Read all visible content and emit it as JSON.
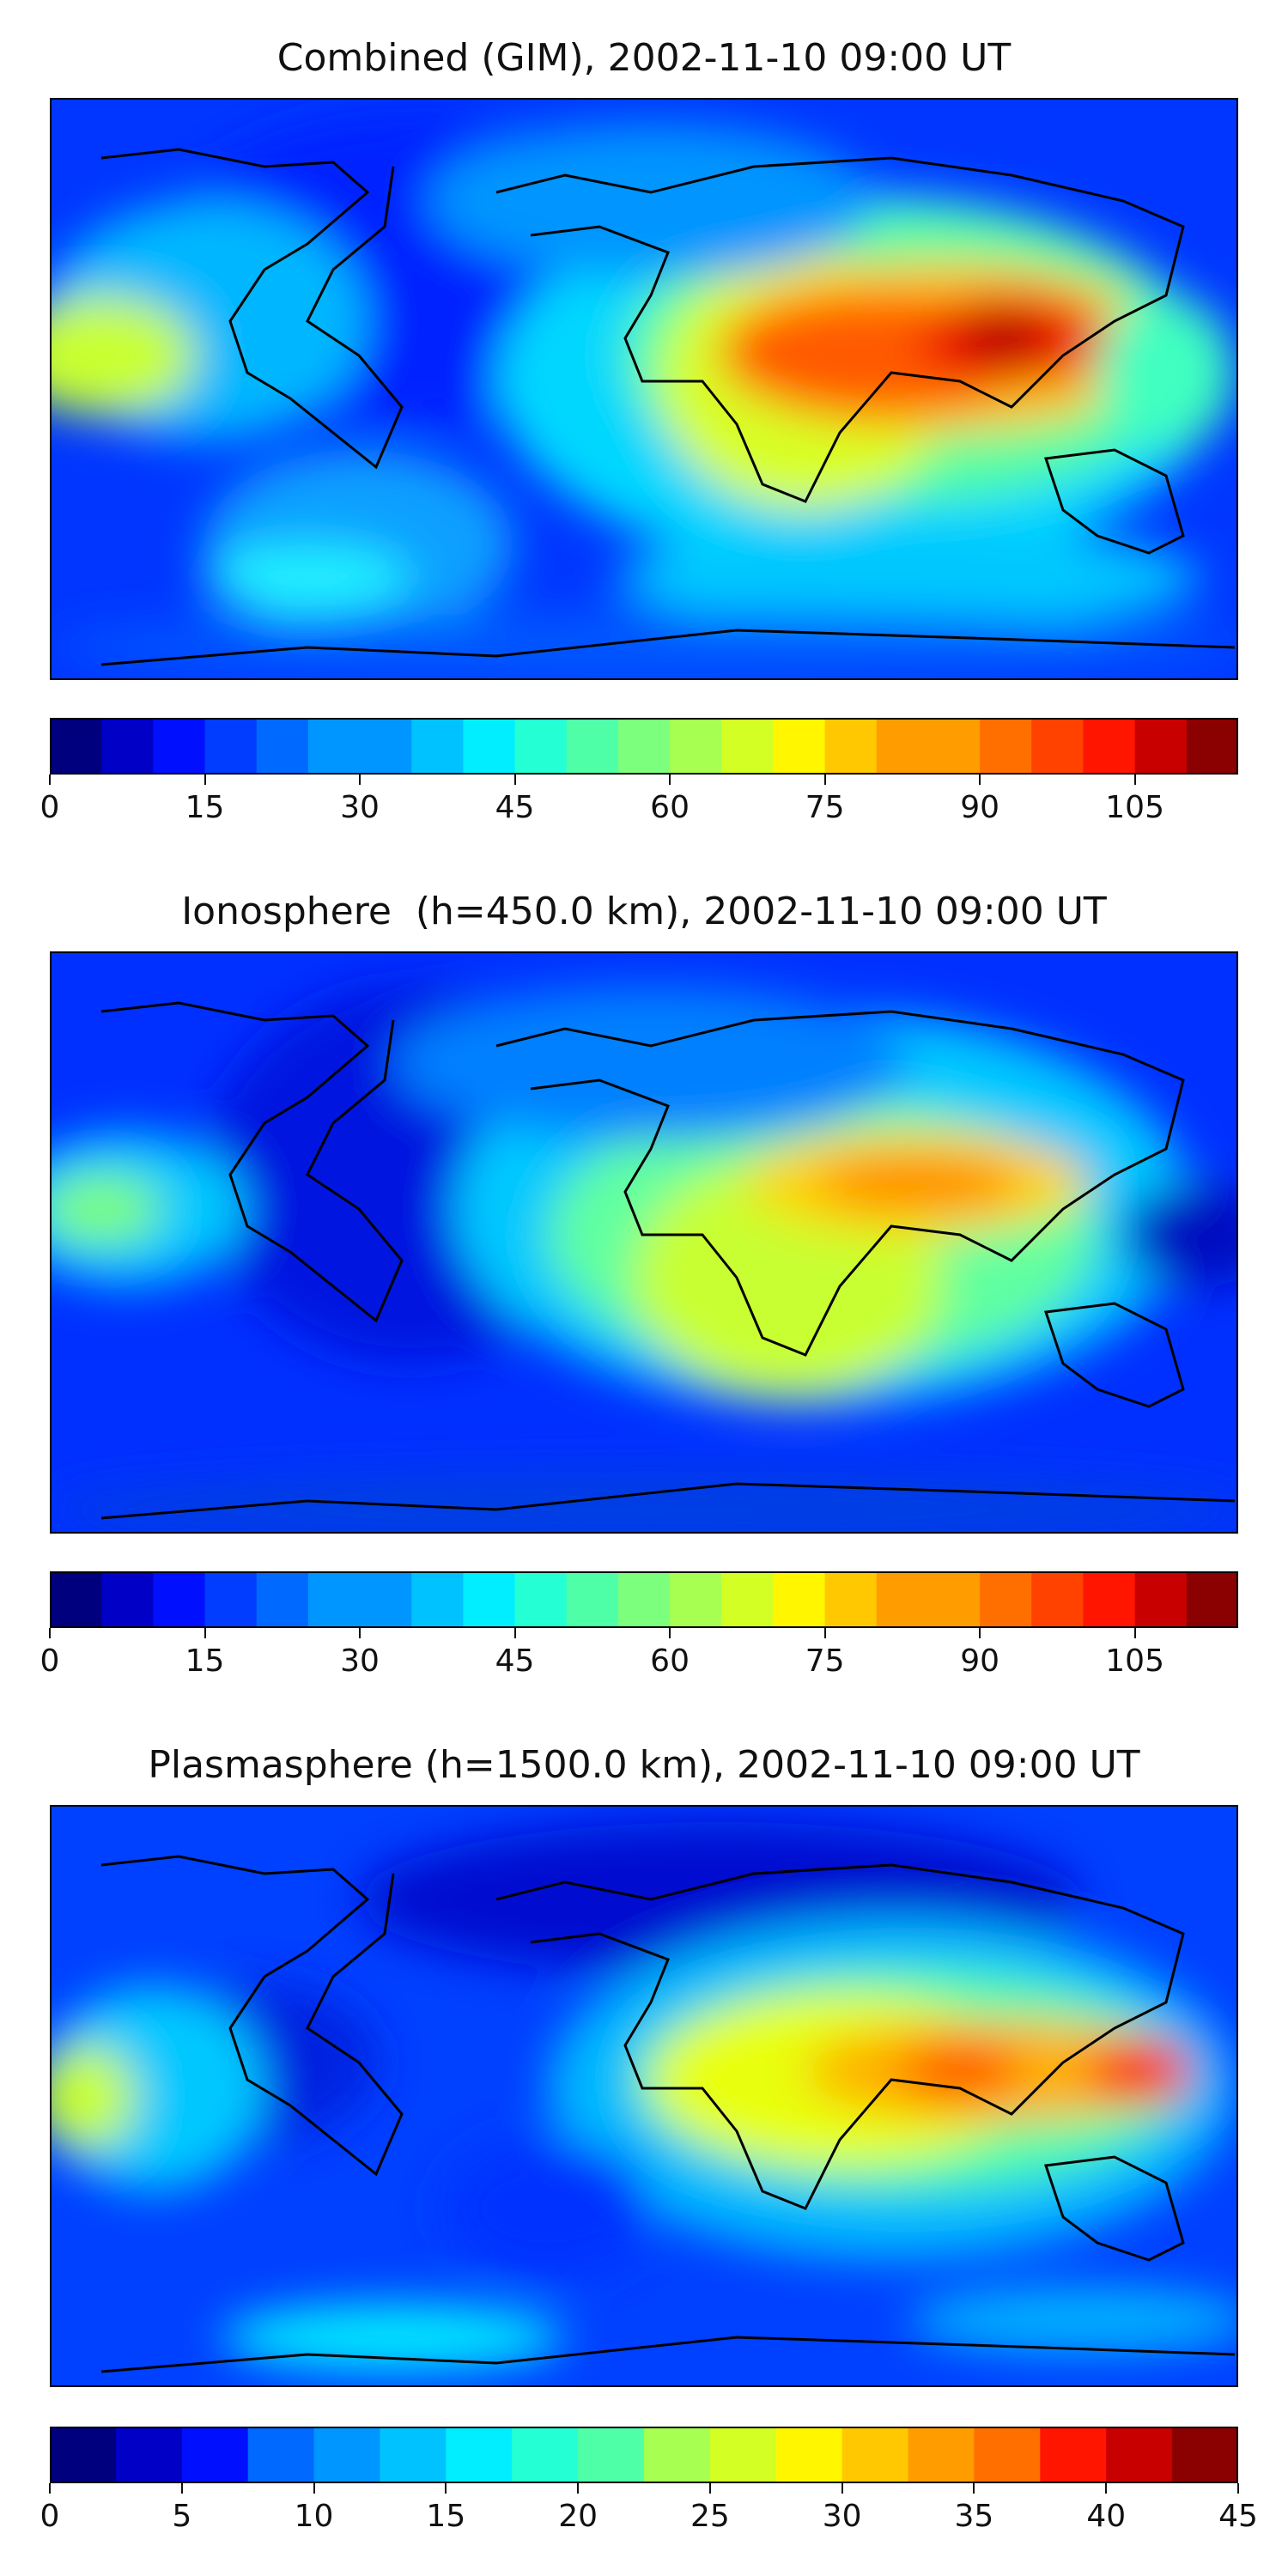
{
  "chart_data": [
    {
      "type": "heatmap",
      "title": "Combined (GIM), 2002-11-10 09:00 UT",
      "colorbar": {
        "min": 0,
        "max": 115,
        "step": 5,
        "ticks": [
          0,
          15,
          30,
          45,
          60,
          75,
          90,
          105
        ]
      },
      "max_region": "South / Southeast Asia",
      "max_value_approx": 110
    },
    {
      "type": "heatmap",
      "title": "Ionosphere  (h=450.0 km), 2002-11-10 09:00 UT",
      "colorbar": {
        "min": 0,
        "max": 115,
        "step": 5,
        "ticks": [
          0,
          15,
          30,
          45,
          60,
          75,
          90,
          105
        ]
      },
      "max_region": "Arabian Sea / India",
      "max_value_approx": 85
    },
    {
      "type": "heatmap",
      "title": "Plasmasphere (h=1500.0 km), 2002-11-10 09:00 UT",
      "colorbar": {
        "min": 0,
        "max": 45,
        "step": 2.5,
        "ticks": [
          0,
          5,
          10,
          15,
          20,
          25,
          30,
          35,
          40,
          45
        ]
      },
      "max_region": "Southeast Asia / Western Pacific",
      "max_value_approx": 42
    }
  ],
  "colormap": [
    "#00007f",
    "#0000c6",
    "#0010ff",
    "#003dff",
    "#0069ff",
    "#0096ff",
    "#00c2ff",
    "#00eeff",
    "#24ffd3",
    "#4fffa8",
    "#7bff7c",
    "#a6ff51",
    "#d3ff25",
    "#fff600",
    "#ffc800",
    "#ff9d00",
    "#ff6f00",
    "#ff4200",
    "#ff1500",
    "#c80000",
    "#8b0000"
  ]
}
